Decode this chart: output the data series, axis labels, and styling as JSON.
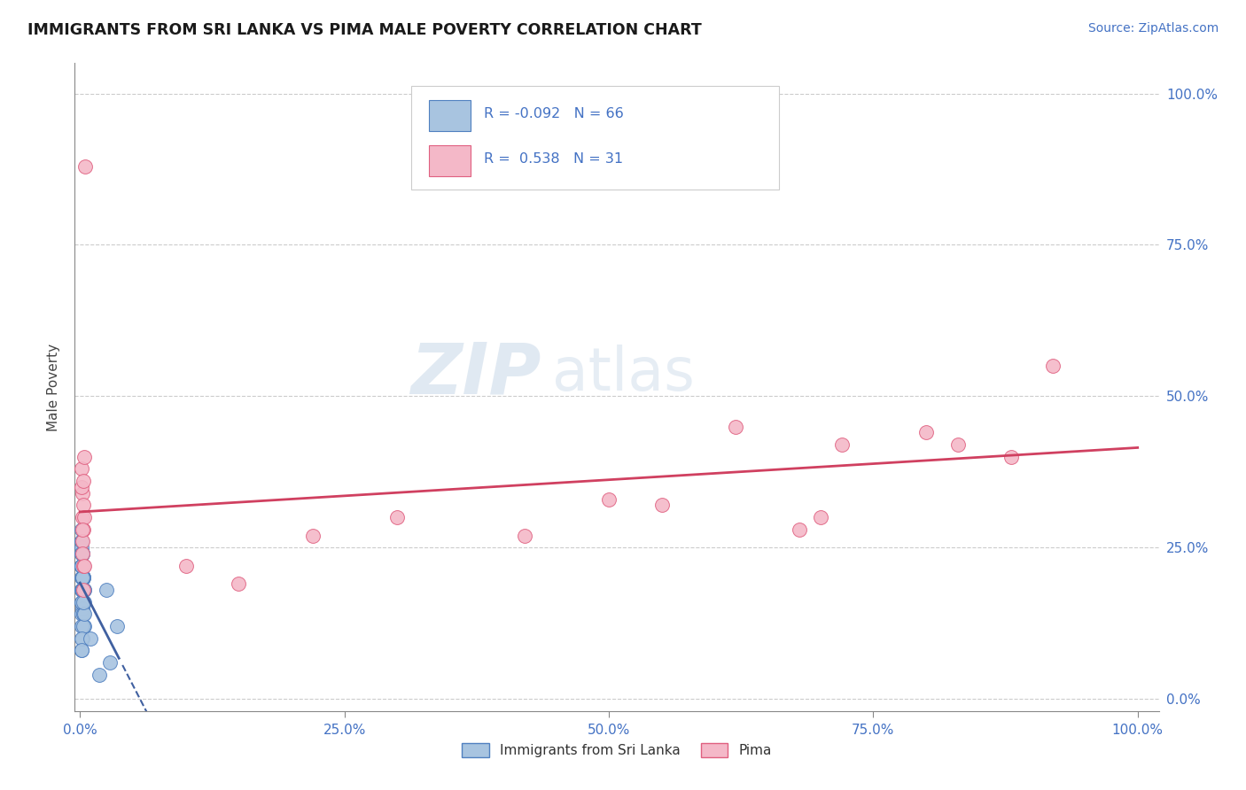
{
  "title": "IMMIGRANTS FROM SRI LANKA VS PIMA MALE POVERTY CORRELATION CHART",
  "source_text": "Source: ZipAtlas.com",
  "ylabel": "Male Poverty",
  "legend_label_1": "Immigrants from Sri Lanka",
  "legend_label_2": "Pima",
  "r1": -0.092,
  "n1": 66,
  "r2": 0.538,
  "n2": 31,
  "blue_scatter_color": "#a8c4e0",
  "blue_edge_color": "#5080c0",
  "pink_scatter_color": "#f4b8c8",
  "pink_edge_color": "#e06080",
  "blue_line_color": "#4060a0",
  "pink_line_color": "#d04060",
  "watermark_zip": "ZIP",
  "watermark_atlas": "atlas",
  "blue_x": [
    0.002,
    0.003,
    0.001,
    0.002,
    0.004,
    0.001,
    0.003,
    0.002,
    0.001,
    0.003,
    0.002,
    0.001,
    0.004,
    0.001,
    0.002,
    0.003,
    0.001,
    0.002,
    0.003,
    0.001,
    0.002,
    0.001,
    0.003,
    0.002,
    0.001,
    0.003,
    0.002,
    0.001,
    0.004,
    0.002,
    0.001,
    0.003,
    0.002,
    0.001,
    0.002,
    0.001,
    0.003,
    0.002,
    0.001,
    0.002,
    0.001,
    0.003,
    0.002,
    0.001,
    0.004,
    0.002,
    0.001,
    0.003,
    0.002,
    0.001,
    0.002,
    0.001,
    0.003,
    0.002,
    0.001,
    0.002,
    0.004,
    0.001,
    0.003,
    0.002,
    0.001,
    0.025,
    0.018,
    0.035,
    0.01,
    0.028
  ],
  "blue_y": [
    0.24,
    0.22,
    0.26,
    0.2,
    0.18,
    0.28,
    0.22,
    0.15,
    0.25,
    0.2,
    0.12,
    0.22,
    0.18,
    0.24,
    0.16,
    0.2,
    0.26,
    0.1,
    0.22,
    0.18,
    0.24,
    0.2,
    0.16,
    0.22,
    0.14,
    0.2,
    0.24,
    0.18,
    0.12,
    0.22,
    0.16,
    0.2,
    0.22,
    0.08,
    0.18,
    0.24,
    0.14,
    0.2,
    0.22,
    0.16,
    0.12,
    0.18,
    0.1,
    0.22,
    0.16,
    0.2,
    0.24,
    0.14,
    0.18,
    0.22,
    0.2,
    0.16,
    0.12,
    0.22,
    0.1,
    0.18,
    0.14,
    0.22,
    0.16,
    0.2,
    0.08,
    0.18,
    0.04,
    0.12,
    0.1,
    0.06
  ],
  "pink_x": [
    0.002,
    0.001,
    0.003,
    0.002,
    0.003,
    0.004,
    0.002,
    0.001,
    0.003,
    0.005,
    0.002,
    0.004,
    0.003,
    0.002,
    0.004,
    0.003,
    0.1,
    0.15,
    0.22,
    0.3,
    0.42,
    0.5,
    0.55,
    0.62,
    0.68,
    0.7,
    0.72,
    0.8,
    0.83,
    0.88,
    0.92
  ],
  "pink_y": [
    0.3,
    0.38,
    0.28,
    0.34,
    0.22,
    0.4,
    0.26,
    0.35,
    0.32,
    0.88,
    0.24,
    0.3,
    0.36,
    0.28,
    0.22,
    0.18,
    0.22,
    0.19,
    0.27,
    0.3,
    0.27,
    0.33,
    0.32,
    0.45,
    0.28,
    0.3,
    0.42,
    0.44,
    0.42,
    0.4,
    0.55
  ],
  "xlim": [
    0.0,
    1.0
  ],
  "ylim": [
    0.0,
    1.0
  ],
  "xticks": [
    0.0,
    0.25,
    0.5,
    0.75,
    1.0
  ],
  "yticks": [
    0.0,
    0.25,
    0.5,
    0.75,
    1.0
  ],
  "xtick_labels": [
    "0.0%",
    "25.0%",
    "50.0%",
    "75.0%",
    "100.0%"
  ],
  "ytick_labels": [
    "0.0%",
    "25.0%",
    "50.0%",
    "75.0%",
    "100.0%"
  ]
}
